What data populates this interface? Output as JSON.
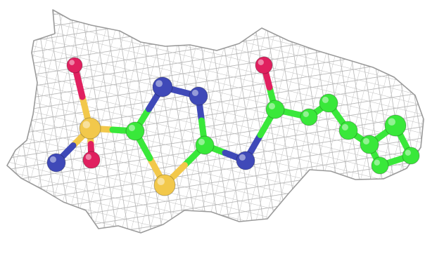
{
  "scene": {
    "subject": "molecule-in-electron-density-mesh",
    "background_color": "#ffffff",
    "mesh_color": "#a9a9a9",
    "bond_color": "#8f8f8f"
  },
  "element_colors": {
    "carbon": "#39e83a",
    "nitrogen": "#3f49b8",
    "oxygen": "#e0205f",
    "sulfur": "#f2c84b"
  },
  "molecule": {
    "atoms": [
      {
        "id": "S1",
        "element": "sulfur"
      },
      {
        "id": "O1",
        "element": "oxygen"
      },
      {
        "id": "O2",
        "element": "oxygen"
      },
      {
        "id": "N1",
        "element": "nitrogen"
      },
      {
        "id": "C1",
        "element": "carbon"
      },
      {
        "id": "N2",
        "element": "nitrogen"
      },
      {
        "id": "N3",
        "element": "nitrogen"
      },
      {
        "id": "C2",
        "element": "carbon"
      },
      {
        "id": "S2",
        "element": "sulfur"
      },
      {
        "id": "N4",
        "element": "nitrogen"
      },
      {
        "id": "C3",
        "element": "carbon"
      },
      {
        "id": "O3",
        "element": "oxygen"
      },
      {
        "id": "C4",
        "element": "carbon"
      },
      {
        "id": "C5",
        "element": "carbon"
      },
      {
        "id": "C6",
        "element": "carbon"
      },
      {
        "id": "C7",
        "element": "carbon"
      },
      {
        "id": "C8",
        "element": "carbon"
      },
      {
        "id": "C9",
        "element": "carbon"
      },
      {
        "id": "C10",
        "element": "carbon"
      }
    ],
    "bonds": [
      [
        "S1",
        "O1"
      ],
      [
        "S1",
        "O2"
      ],
      [
        "S1",
        "N1"
      ],
      [
        "S1",
        "C1"
      ],
      [
        "C1",
        "N2"
      ],
      [
        "N2",
        "N3"
      ],
      [
        "N3",
        "C2"
      ],
      [
        "C2",
        "S2"
      ],
      [
        "S2",
        "C1"
      ],
      [
        "C2",
        "N4"
      ],
      [
        "N4",
        "C3"
      ],
      [
        "C3",
        "O3"
      ],
      [
        "C3",
        "C4"
      ],
      [
        "C4",
        "C5"
      ],
      [
        "C5",
        "C6"
      ],
      [
        "C6",
        "C7"
      ],
      [
        "C7",
        "C8"
      ],
      [
        "C8",
        "C9"
      ],
      [
        "C9",
        "C10"
      ],
      [
        "C10",
        "C7"
      ]
    ]
  }
}
